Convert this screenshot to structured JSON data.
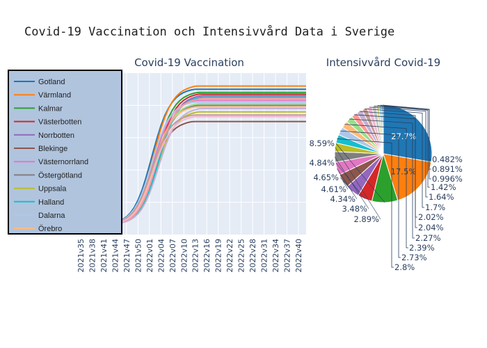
{
  "title": "Covid-19 Vaccination och Intensivvård Data i Sverige",
  "colors": {
    "plot_bg": "#e5ecf6",
    "legend_bg": "#b0c4de",
    "legend_border": "#000000",
    "grid": "#ffffff"
  },
  "chart_data": [
    {
      "type": "line",
      "title": "Covid-19 Vaccination",
      "xlabel": "",
      "ylabel": "",
      "x_ticks": [
        "2021v35",
        "2021v38",
        "2021v41",
        "2021v44",
        "2021v47",
        "2021v50",
        "2022v01",
        "2022v04",
        "2022v07",
        "2022v10",
        "2022v13",
        "2022v16",
        "2022v19",
        "2022v22",
        "2022v25",
        "2022v28",
        "2022v31",
        "2022v34",
        "2022v37",
        "2022v40"
      ],
      "x_tick_index": [
        0,
        3,
        6,
        9,
        12,
        15,
        18,
        21,
        24,
        27,
        30,
        33,
        36,
        39,
        42,
        45,
        48,
        51,
        54,
        57
      ],
      "x_range": [
        -2,
        59
      ],
      "y_range": [
        0,
        100
      ],
      "legend_position": "top-left",
      "grid": true,
      "series": [
        {
          "name": "Gotland",
          "color": "#1f77b4",
          "final": 90
        },
        {
          "name": "Värmland",
          "color": "#ff7f0e",
          "final": 92
        },
        {
          "name": "Kalmar",
          "color": "#2ca02c",
          "final": 88
        },
        {
          "name": "Västerbotten",
          "color": "#d62728",
          "final": 87
        },
        {
          "name": "Norrbotten",
          "color": "#9467bd",
          "final": 86
        },
        {
          "name": "Blekinge",
          "color": "#8c564b",
          "final": 70
        },
        {
          "name": "Västernorrland",
          "color": "#e377c2",
          "final": 83
        },
        {
          "name": "Östergötland",
          "color": "#7f7f7f",
          "final": 80
        },
        {
          "name": "Uppsala",
          "color": "#bcbd22",
          "final": 76
        },
        {
          "name": "Halland",
          "color": "#17becf",
          "final": 85
        },
        {
          "name": "Dalarna",
          "color": "#aec7e8",
          "final": 82
        },
        {
          "name": "Örebro",
          "color": "#ffbb78",
          "final": 79
        },
        {
          "name": "",
          "color": "#98df8a",
          "final": 81
        },
        {
          "name": "",
          "color": "#ff9896",
          "final": 84
        },
        {
          "name": "",
          "color": "#c5b0d5",
          "final": 78
        },
        {
          "name": "",
          "color": "#c49c94",
          "final": 74
        },
        {
          "name": "",
          "color": "#f7b6d2",
          "final": 73
        }
      ]
    },
    {
      "type": "pie",
      "title": "Intensivvård Covid-19",
      "values": [
        27.7,
        17.5,
        8.59,
        4.84,
        4.65,
        4.61,
        4.34,
        3.48,
        2.89,
        2.8,
        2.73,
        2.39,
        2.27,
        2.04,
        2.02,
        1.7,
        1.64,
        1.42,
        0.996,
        0.891,
        0.482
      ],
      "labels": [
        "27.7%",
        "17.5%",
        "8.59%",
        "4.84%",
        "4.65%",
        "4.61%",
        "4.34%",
        "3.48%",
        "2.89%",
        "2.8%",
        "2.73%",
        "2.39%",
        "2.27%",
        "2.04%",
        "2.02%",
        "1.7%",
        "1.64%",
        "1.42%",
        "0.996%",
        "0.891%",
        "0.482%"
      ],
      "colors": [
        "#1f77b4",
        "#ff7f0e",
        "#2ca02c",
        "#d62728",
        "#9467bd",
        "#8c564b",
        "#e377c2",
        "#7f7f7f",
        "#bcbd22",
        "#17becf",
        "#aec7e8",
        "#ffbb78",
        "#98df8a",
        "#ff9896",
        "#c5b0d5",
        "#c49c94",
        "#f7b6d2",
        "#c7c7c7",
        "#dbdb8d",
        "#9edae5",
        "#1f77b4"
      ]
    }
  ]
}
